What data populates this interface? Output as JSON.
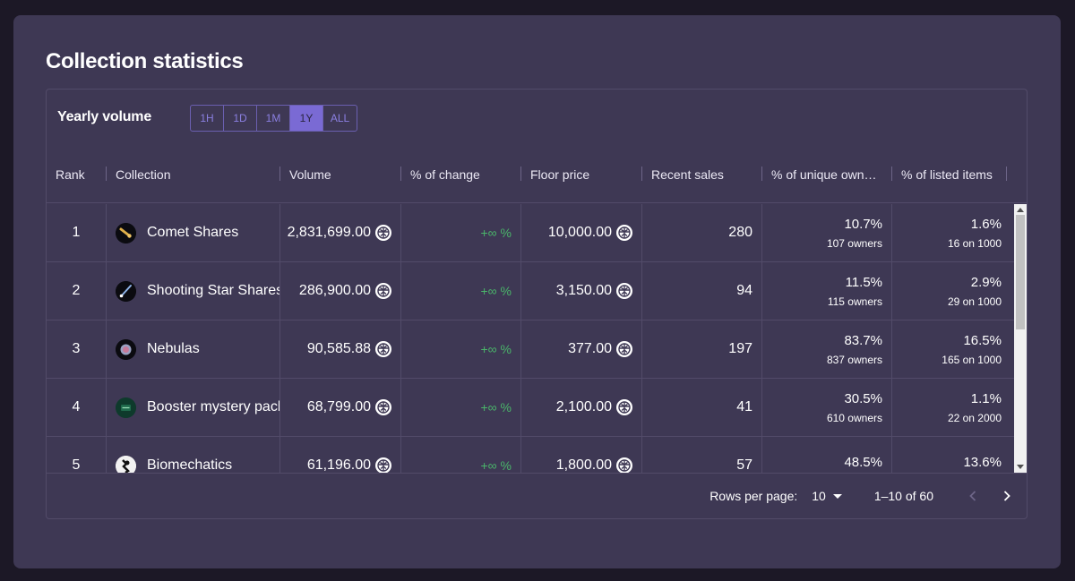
{
  "card": {
    "title": "Collection statistics"
  },
  "panel": {
    "title": "Yearly volume",
    "ranges": [
      "1H",
      "1D",
      "1M",
      "1Y",
      "ALL"
    ],
    "active_range": "1Y"
  },
  "table": {
    "headers": {
      "rank": "Rank",
      "collection": "Collection",
      "volume": "Volume",
      "change": "% of change",
      "floor": "Floor price",
      "sales": "Recent sales",
      "unique": "% of unique own…",
      "listed": "% of listed items"
    },
    "rows": [
      {
        "rank": "1",
        "collection": "Comet Shares",
        "volume": "2,831,699.00",
        "change": "+∞ %",
        "floor": "10,000.00",
        "sales": "280",
        "unique_pct": "10.7%",
        "unique_sub": "107 owners",
        "listed_pct": "1.6%",
        "listed_sub": "16 on 1000",
        "avatar_icon": "comet-icon"
      },
      {
        "rank": "2",
        "collection": "Shooting Star Shares",
        "volume": "286,900.00",
        "change": "+∞ %",
        "floor": "3,150.00",
        "sales": "94",
        "unique_pct": "11.5%",
        "unique_sub": "115 owners",
        "listed_pct": "2.9%",
        "listed_sub": "29 on 1000",
        "avatar_icon": "shooting-star-icon"
      },
      {
        "rank": "3",
        "collection": "Nebulas",
        "volume": "90,585.88",
        "change": "+∞ %",
        "floor": "377.00",
        "sales": "197",
        "unique_pct": "83.7%",
        "unique_sub": "837 owners",
        "listed_pct": "16.5%",
        "listed_sub": "165 on 1000",
        "avatar_icon": "nebula-icon"
      },
      {
        "rank": "4",
        "collection": "Booster mystery pack",
        "volume": "68,799.00",
        "change": "+∞ %",
        "floor": "2,100.00",
        "sales": "41",
        "unique_pct": "30.5%",
        "unique_sub": "610 owners",
        "listed_pct": "1.1%",
        "listed_sub": "22 on 2000",
        "avatar_icon": "booster-pack-icon"
      },
      {
        "rank": "5",
        "collection": "Biomechatics",
        "volume": "61,196.00",
        "change": "+∞ %",
        "floor": "1,800.00",
        "sales": "57",
        "unique_pct": "48.5%",
        "unique_sub": "",
        "listed_pct": "13.6%",
        "listed_sub": "",
        "avatar_icon": "biomechatics-icon"
      }
    ]
  },
  "footer": {
    "rows_per_page_label": "Rows per page:",
    "rows_per_page_value": "10",
    "range_info": "1–10 of 60"
  },
  "colors": {
    "card_bg": "#3e3854",
    "page_bg": "#1c1826",
    "accent": "#7a6ad4",
    "positive": "#4ab56a"
  },
  "icons": {
    "currency": "token-icon",
    "prev": "chevron-left-icon",
    "next": "chevron-right-icon"
  }
}
